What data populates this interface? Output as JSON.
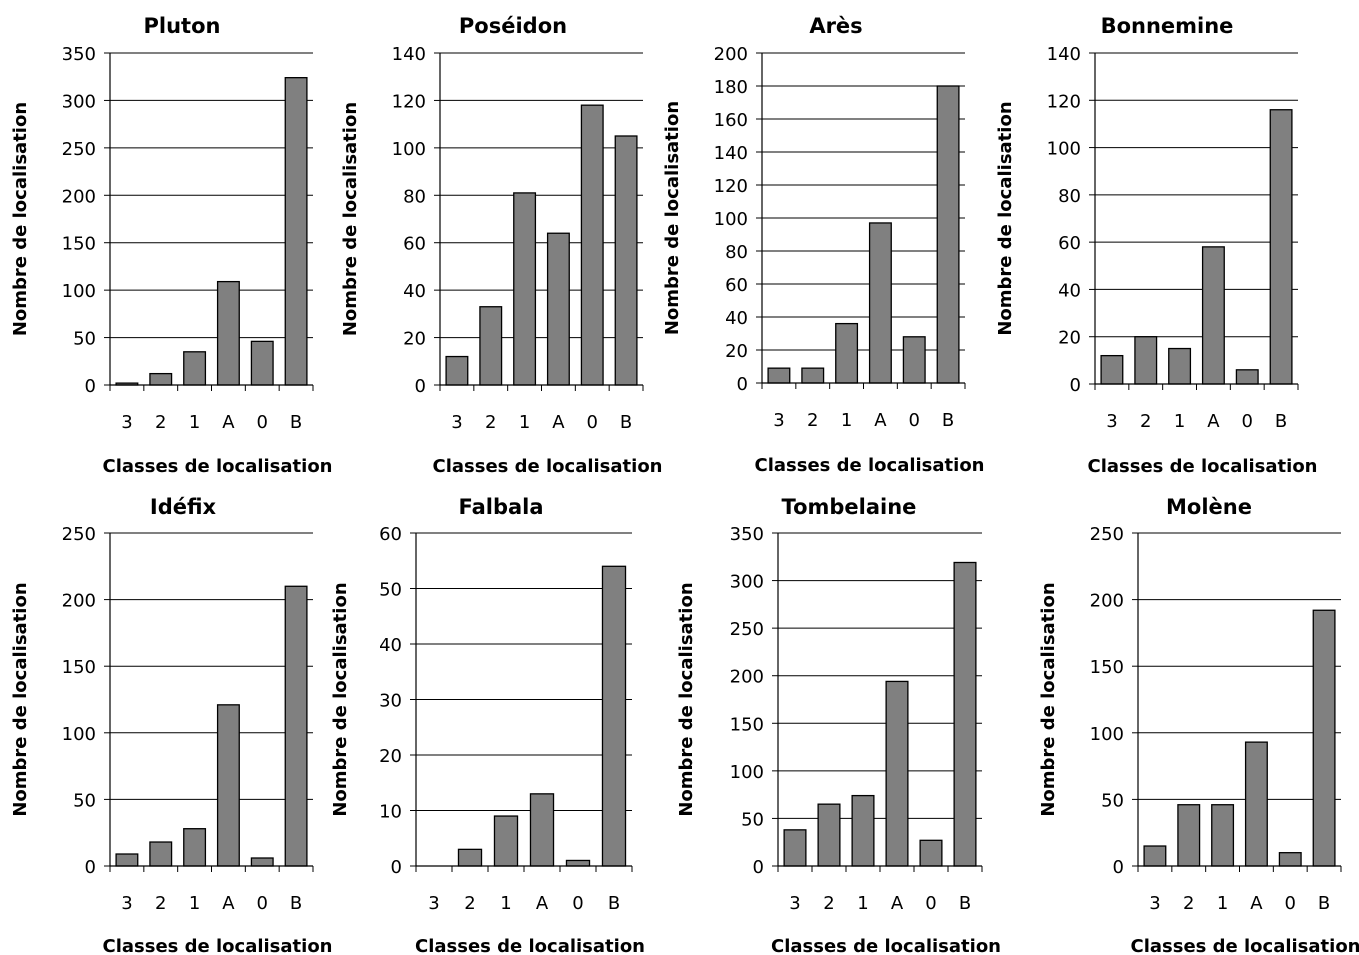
{
  "chart_data": [
    {
      "type": "bar",
      "title": "Pluton",
      "xlabel": "Classes de localisation",
      "ylabel": "Nombre de localisation",
      "categories": [
        "3",
        "2",
        "1",
        "A",
        "0",
        "B"
      ],
      "values": [
        2,
        12,
        35,
        109,
        46,
        324
      ],
      "ylim": [
        0,
        350
      ],
      "yticks": [
        0,
        50,
        100,
        150,
        200,
        250,
        300,
        350
      ],
      "grid": true,
      "bar_color": "#808080"
    },
    {
      "type": "bar",
      "title": "Poséidon",
      "xlabel": "Classes de localisation",
      "ylabel": "Nombre de localisation",
      "categories": [
        "3",
        "2",
        "1",
        "A",
        "0",
        "B"
      ],
      "values": [
        12,
        33,
        81,
        64,
        118,
        105
      ],
      "ylim": [
        0,
        140
      ],
      "yticks": [
        0,
        20,
        40,
        60,
        80,
        100,
        120,
        140
      ],
      "grid": true,
      "bar_color": "#808080"
    },
    {
      "type": "bar",
      "title": "Arès",
      "xlabel": "Classes de localisation",
      "ylabel": "Nombre de localisation",
      "categories": [
        "3",
        "2",
        "1",
        "A",
        "0",
        "B"
      ],
      "values": [
        9,
        9,
        36,
        97,
        28,
        180
      ],
      "ylim": [
        0,
        200
      ],
      "yticks": [
        0,
        20,
        40,
        60,
        80,
        100,
        120,
        140,
        160,
        180,
        200
      ],
      "grid": true,
      "bar_color": "#808080"
    },
    {
      "type": "bar",
      "title": "Bonnemine",
      "xlabel": "Classes de localisation",
      "ylabel": "Nombre de localisation",
      "categories": [
        "3",
        "2",
        "1",
        "A",
        "0",
        "B"
      ],
      "values": [
        12,
        20,
        15,
        58,
        6,
        116
      ],
      "ylim": [
        0,
        140
      ],
      "yticks": [
        0,
        20,
        40,
        60,
        80,
        100,
        120,
        140
      ],
      "grid": true,
      "bar_color": "#808080"
    },
    {
      "type": "bar",
      "title": "Idéfix",
      "xlabel": "Classes de localisation",
      "ylabel": "Nombre de localisation",
      "categories": [
        "3",
        "2",
        "1",
        "A",
        "0",
        "B"
      ],
      "values": [
        9,
        18,
        28,
        121,
        6,
        210
      ],
      "ylim": [
        0,
        250
      ],
      "yticks": [
        0,
        50,
        100,
        150,
        200,
        250
      ],
      "grid": true,
      "bar_color": "#808080"
    },
    {
      "type": "bar",
      "title": "Falbala",
      "xlabel": "Classes de localisation",
      "ylabel": "Nombre de localisation",
      "categories": [
        "3",
        "2",
        "1",
        "A",
        "0",
        "B"
      ],
      "values": [
        0,
        3,
        9,
        13,
        1,
        54
      ],
      "ylim": [
        0,
        60
      ],
      "yticks": [
        0,
        10,
        20,
        30,
        40,
        50,
        60
      ],
      "grid": true,
      "bar_color": "#808080"
    },
    {
      "type": "bar",
      "title": "Tombelaine",
      "xlabel": "Classes de localisation",
      "ylabel": "Nombre de localisation",
      "categories": [
        "3",
        "2",
        "1",
        "A",
        "0",
        "B"
      ],
      "values": [
        38,
        65,
        74,
        194,
        27,
        319
      ],
      "ylim": [
        0,
        350
      ],
      "yticks": [
        0,
        50,
        100,
        150,
        200,
        250,
        300,
        350
      ],
      "grid": true,
      "bar_color": "#808080"
    },
    {
      "type": "bar",
      "title": "Molène",
      "xlabel": "Classes de localisation",
      "ylabel": "Nombre de localisation",
      "categories": [
        "3",
        "2",
        "1",
        "A",
        "0",
        "B"
      ],
      "values": [
        15,
        46,
        46,
        93,
        10,
        192
      ],
      "ylim": [
        0,
        250
      ],
      "yticks": [
        0,
        50,
        100,
        150,
        200,
        250
      ],
      "grid": true,
      "bar_color": "#808080"
    }
  ]
}
